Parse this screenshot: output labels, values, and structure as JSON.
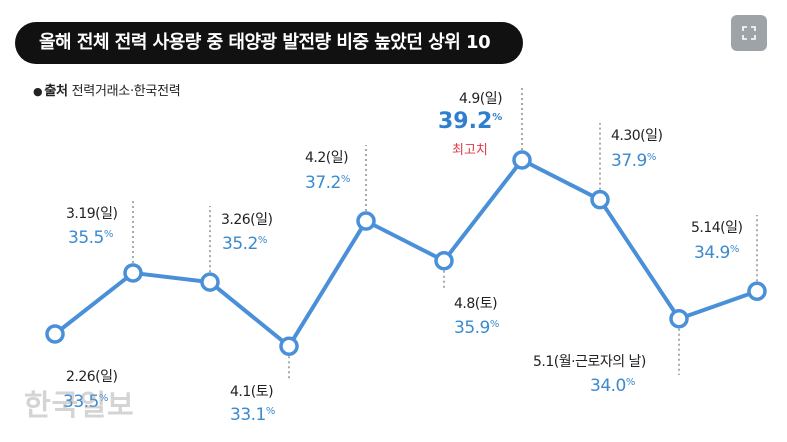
{
  "header": {
    "title": "올해 전체 전력 사용량 중 태양광 발전량 비중 높았던 상위 10"
  },
  "source": {
    "label": "출처",
    "text": "전력거래소·한국전력"
  },
  "watermark": "한국일보",
  "colors": {
    "line": "#4a90d9",
    "value_text": "#3a8ad0",
    "highlight": "#e0384a",
    "title_bg": "#111111"
  },
  "chart_data": {
    "type": "line",
    "title": "올해 전체 전력 사용량 중 태양광 발전량 비중 높았던 상위 10",
    "unit": "%",
    "categories": [
      "2.26(일)",
      "3.19(일)",
      "3.26(일)",
      "4.1(토)",
      "4.2(일)",
      "4.8(토)",
      "4.9(일)",
      "4.30(일)",
      "5.1(월·근로자의 날)",
      "5.14(일)"
    ],
    "values": [
      33.5,
      35.5,
      35.2,
      33.1,
      37.2,
      35.9,
      39.2,
      37.9,
      34.0,
      34.9
    ],
    "value_labels": [
      "33.5",
      "35.5",
      "35.2",
      "33.1",
      "37.2",
      "35.9",
      "39.2",
      "37.9",
      "34.0",
      "34.9"
    ],
    "annotation": {
      "index": 6,
      "text": "최고치"
    },
    "ylim": [
      32,
      40
    ],
    "grid": false,
    "legend": "none"
  }
}
